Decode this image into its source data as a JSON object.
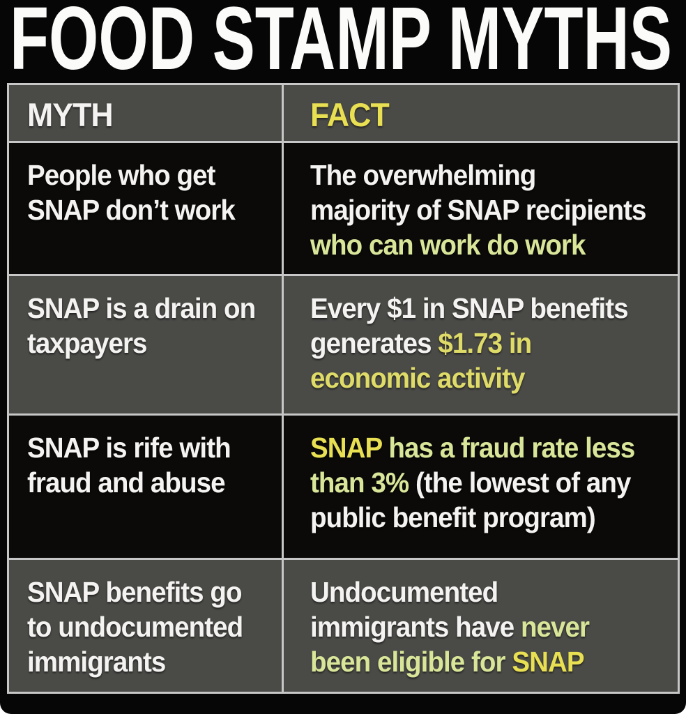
{
  "title": "FOOD STAMP MYTHS",
  "colors": {
    "white": "#f4f3f1",
    "yellow": "#dedb68",
    "pale": "#d9e699",
    "bright": "#e9df52",
    "border": "#c7c7c7",
    "row_black": "#0b0a09",
    "row_gray": "#4a4a47",
    "background": "#060606"
  },
  "table": {
    "headers": [
      {
        "label": "MYTH",
        "color": "white"
      },
      {
        "label": "FACT",
        "color": "bright"
      }
    ],
    "rows": [
      {
        "myth_lines": [
          [
            {
              "t": "People who get",
              "c": "white"
            }
          ],
          [
            {
              "t": "SNAP don’t work",
              "c": "white"
            }
          ]
        ],
        "fact_lines": [
          [
            {
              "t": "The overwhelming",
              "c": "white"
            }
          ],
          [
            {
              "t": "majority of SNAP recipients",
              "c": "white"
            }
          ],
          [
            {
              "t": "who can work do work",
              "c": "pale"
            }
          ]
        ]
      },
      {
        "myth_lines": [
          [
            {
              "t": "SNAP is a drain on",
              "c": "white"
            }
          ],
          [
            {
              "t": "taxpayers",
              "c": "white"
            }
          ]
        ],
        "fact_lines": [
          [
            {
              "t": "Every $1 in SNAP benefits",
              "c": "white"
            }
          ],
          [
            {
              "t": "generates ",
              "c": "white"
            },
            {
              "t": "$1.73 in",
              "c": "yellow"
            }
          ],
          [
            {
              "t": "economic activity",
              "c": "yellow"
            }
          ]
        ]
      },
      {
        "myth_lines": [
          [
            {
              "t": "SNAP is rife with",
              "c": "white"
            }
          ],
          [
            {
              "t": "fraud and abuse",
              "c": "white"
            }
          ]
        ],
        "fact_lines": [
          [
            {
              "t": "SNAP",
              "c": "bright"
            },
            {
              "t": " has a fraud rate less",
              "c": "pale"
            }
          ],
          [
            {
              "t": "than 3% ",
              "c": "pale"
            },
            {
              "t": "(the lowest of any",
              "c": "white"
            }
          ],
          [
            {
              "t": "public benefit program)",
              "c": "white"
            }
          ]
        ]
      },
      {
        "myth_lines": [
          [
            {
              "t": "SNAP benefits go",
              "c": "white"
            }
          ],
          [
            {
              "t": "to undocumented",
              "c": "white"
            }
          ],
          [
            {
              "t": "immigrants",
              "c": "white"
            }
          ]
        ],
        "fact_lines": [
          [
            {
              "t": "Undocumented",
              "c": "white"
            }
          ],
          [
            {
              "t": "immigrants have ",
              "c": "white"
            },
            {
              "t": "never",
              "c": "pale"
            }
          ],
          [
            {
              "t": "been eligible for ",
              "c": "pale"
            },
            {
              "t": "SNAP",
              "c": "bright"
            }
          ]
        ]
      }
    ]
  }
}
